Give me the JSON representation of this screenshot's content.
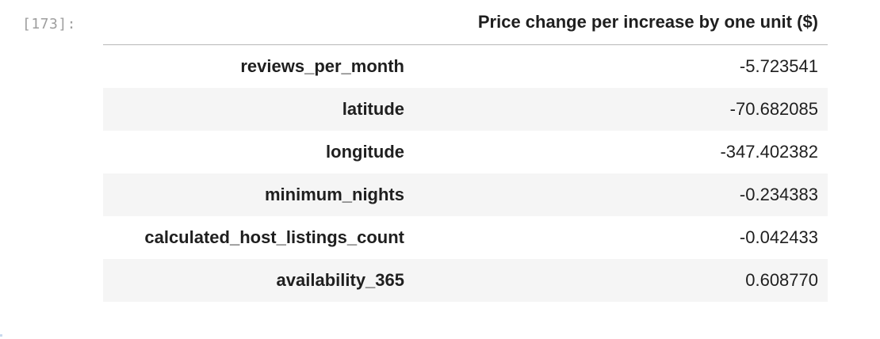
{
  "cell": {
    "prompt": "[173]:"
  },
  "table": {
    "index_header": "",
    "column_header": "Price change per increase by one unit ($)",
    "rows": [
      {
        "index": "reviews_per_month",
        "value": "-5.723541"
      },
      {
        "index": "latitude",
        "value": "-70.682085"
      },
      {
        "index": "longitude",
        "value": "-347.402382"
      },
      {
        "index": "minimum_nights",
        "value": "-0.234383"
      },
      {
        "index": "calculated_host_listings_count",
        "value": "-0.042433"
      },
      {
        "index": "availability_365",
        "value": "0.608770"
      }
    ]
  }
}
